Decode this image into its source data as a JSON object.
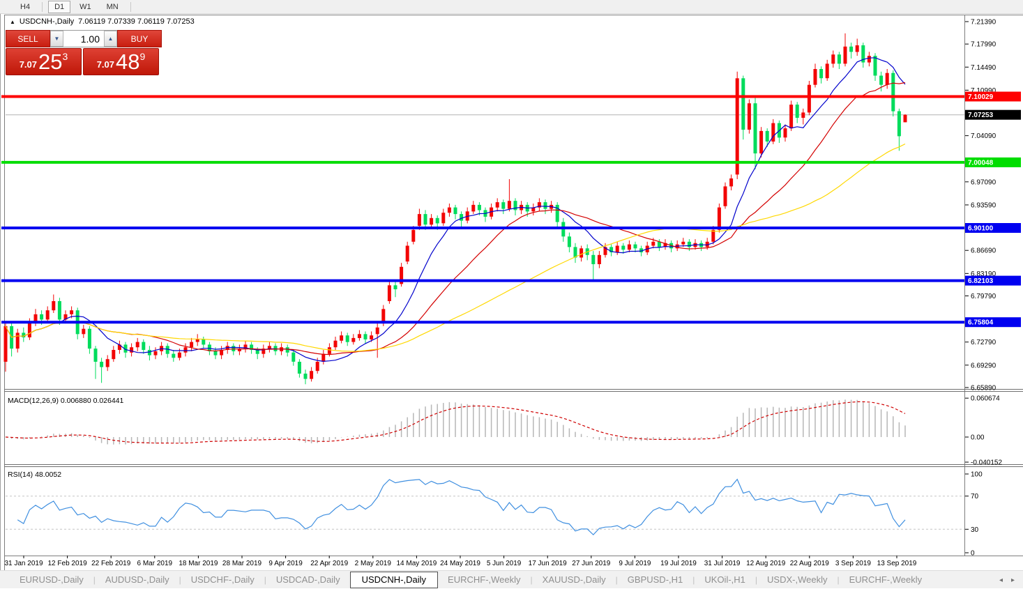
{
  "toolbar": {
    "timeframes": [
      {
        "label": "H4",
        "active": false
      },
      {
        "label": "D1",
        "active": true
      },
      {
        "label": "W1",
        "active": false
      },
      {
        "label": "MN",
        "active": false
      }
    ]
  },
  "chart_header": {
    "arrow": "▲",
    "title": "USDCNH-,Daily",
    "ohlc": "7.06119 7.07339 7.06119 7.07253"
  },
  "trade_panel": {
    "sell_label": "SELL",
    "buy_label": "BUY",
    "volume": "1.00",
    "spin_down_icon": "▼",
    "spin_up_icon": "▲",
    "sell_price": {
      "small": "7.07",
      "big": "25",
      "sup": "3"
    },
    "buy_price": {
      "small": "7.07",
      "big": "48",
      "sup": "9"
    }
  },
  "price_axis": {
    "ticks": [
      {
        "label": "7.21390",
        "price": 7.2139
      },
      {
        "label": "7.17990",
        "price": 7.1799
      },
      {
        "label": "7.14490",
        "price": 7.1449
      },
      {
        "label": "7.10990",
        "price": 7.1099
      },
      {
        "label": "7.04090",
        "price": 7.0409
      },
      {
        "label": "6.97090",
        "price": 6.9709
      },
      {
        "label": "6.93590",
        "price": 6.9359
      },
      {
        "label": "6.86690",
        "price": 6.8669
      },
      {
        "label": "6.83190",
        "price": 6.8319
      },
      {
        "label": "6.79790",
        "price": 6.7979
      },
      {
        "label": "6.72790",
        "price": 6.7279
      },
      {
        "label": "6.69290",
        "price": 6.6929
      },
      {
        "label": "6.65890",
        "price": 6.6589
      }
    ]
  },
  "levels": [
    {
      "label": "7.10029",
      "price": 7.10029,
      "color": "#fe0000"
    },
    {
      "label": "7.00048",
      "price": 7.00048,
      "color": "#00dd00"
    },
    {
      "label": "6.90100",
      "price": 6.901,
      "color": "#0000f0"
    },
    {
      "label": "6.82103",
      "price": 6.82103,
      "color": "#0000f0"
    },
    {
      "label": "6.75804",
      "price": 6.75804,
      "color": "#0000f0"
    }
  ],
  "current_price": {
    "label": "7.07253",
    "price": 7.07253
  },
  "macd_panel": {
    "label": "MACD(12,26,9) 0.006880 0.026441",
    "values": {
      "macd": 0.00688,
      "signal": 0.026441
    },
    "ticks": [
      {
        "label": "0.060674",
        "value": 0.060674
      },
      {
        "label": "0.00",
        "value": 0
      },
      {
        "label": "-0.040152",
        "value": -0.040152
      }
    ]
  },
  "rsi_panel": {
    "label": "RSI(14) 48.0052",
    "current": 48.0052,
    "levels": [
      70,
      30
    ],
    "ticks": [
      {
        "label": "100",
        "value": 100
      },
      {
        "label": "70",
        "value": 70
      },
      {
        "label": "30",
        "value": 30
      },
      {
        "label": "0",
        "value": 0
      }
    ]
  },
  "chart_data": {
    "type": "candlestick",
    "symbol": "USDCNH-",
    "timeframe": "Daily",
    "title": "USDCNH-,Daily",
    "current_ohlc": {
      "open": 7.06119,
      "high": 7.07339,
      "low": 7.06119,
      "close": 7.07253
    },
    "ylim": [
      6.6589,
      7.2139
    ],
    "grid": false,
    "color_convention": "red=bullish, green=bearish",
    "colors": {
      "bull": "#f20505",
      "bear": "#00dc5c",
      "hist": "#b6b6b6",
      "signal": "#cf0000",
      "rsi": "#3f8fe0",
      "current_line": "#b2b2b2"
    },
    "moving_averages": [
      {
        "period": 9,
        "color": "#0000cc"
      },
      {
        "period": 21,
        "color": "#d40000"
      },
      {
        "period": 45,
        "color": "#ffd800"
      }
    ],
    "macd_params": {
      "fast": 12,
      "slow": 26,
      "signal": 9
    },
    "rsi_period": 14,
    "date_labels": [
      "31 Jan 2019",
      "12 Feb 2019",
      "22 Feb 2019",
      "6 Mar 2019",
      "18 Mar 2019",
      "28 Mar 2019",
      "9 Apr 2019",
      "22 Apr 2019",
      "2 May 2019",
      "14 May 2019",
      "24 May 2019",
      "5 Jun 2019",
      "17 Jun 2019",
      "27 Jun 2019",
      "9 Jul 2019",
      "19 Jul 2019",
      "31 Jul 2019",
      "12 Aug 2019",
      "22 Aug 2019",
      "3 Sep 2019",
      "13 Sep 2019"
    ],
    "bars": [
      [
        6.698,
        6.758,
        6.683,
        6.752
      ],
      [
        6.752,
        6.757,
        6.706,
        6.718
      ],
      [
        6.718,
        6.748,
        6.712,
        6.742
      ],
      [
        6.742,
        6.75,
        6.728,
        6.735
      ],
      [
        6.735,
        6.764,
        6.731,
        6.758
      ],
      [
        6.758,
        6.778,
        6.752,
        6.77
      ],
      [
        6.77,
        6.776,
        6.754,
        6.762
      ],
      [
        6.762,
        6.782,
        6.758,
        6.776
      ],
      [
        6.776,
        6.8,
        6.772,
        6.79
      ],
      [
        6.79,
        6.795,
        6.754,
        6.762
      ],
      [
        6.762,
        6.776,
        6.756,
        6.77
      ],
      [
        6.77,
        6.782,
        6.764,
        6.776
      ],
      [
        6.776,
        6.78,
        6.732,
        6.74
      ],
      [
        6.74,
        6.754,
        6.734,
        6.748
      ],
      [
        6.748,
        6.752,
        6.71,
        6.718
      ],
      [
        6.718,
        6.722,
        6.672,
        6.698
      ],
      [
        6.698,
        6.704,
        6.666,
        6.69
      ],
      [
        6.69,
        6.708,
        6.684,
        6.702
      ],
      [
        6.702,
        6.722,
        6.698,
        6.716
      ],
      [
        6.716,
        6.73,
        6.71,
        6.724
      ],
      [
        6.724,
        6.728,
        6.704,
        6.712
      ],
      [
        6.712,
        6.726,
        6.706,
        6.72
      ],
      [
        6.72,
        6.734,
        6.714,
        6.728
      ],
      [
        6.728,
        6.732,
        6.71,
        6.716
      ],
      [
        6.716,
        6.722,
        6.7,
        6.708
      ],
      [
        6.708,
        6.72,
        6.702,
        6.714
      ],
      [
        6.714,
        6.728,
        6.708,
        6.722
      ],
      [
        6.722,
        6.726,
        6.704,
        6.71
      ],
      [
        6.71,
        6.716,
        6.698,
        6.704
      ],
      [
        6.704,
        6.718,
        6.7,
        6.712
      ],
      [
        6.712,
        6.726,
        6.706,
        6.72
      ],
      [
        6.72,
        6.734,
        6.714,
        6.728
      ],
      [
        6.728,
        6.74,
        6.722,
        6.732
      ],
      [
        6.732,
        6.736,
        6.718,
        6.724
      ],
      [
        6.724,
        6.728,
        6.708,
        6.714
      ],
      [
        6.714,
        6.72,
        6.702,
        6.708
      ],
      [
        6.708,
        6.722,
        6.702,
        6.716
      ],
      [
        6.716,
        6.728,
        6.71,
        6.722
      ],
      [
        6.722,
        6.726,
        6.708,
        6.714
      ],
      [
        6.714,
        6.724,
        6.708,
        6.718
      ],
      [
        6.718,
        6.73,
        6.712,
        6.724
      ],
      [
        6.724,
        6.728,
        6.71,
        6.716
      ],
      [
        6.716,
        6.72,
        6.702,
        6.71
      ],
      [
        6.71,
        6.724,
        6.704,
        6.718
      ],
      [
        6.718,
        6.728,
        6.712,
        6.722
      ],
      [
        6.722,
        6.726,
        6.708,
        6.714
      ],
      [
        6.714,
        6.726,
        6.708,
        6.72
      ],
      [
        6.72,
        6.724,
        6.706,
        6.712
      ],
      [
        6.712,
        6.716,
        6.692,
        6.698
      ],
      [
        6.698,
        6.702,
        6.674,
        6.68
      ],
      [
        6.68,
        6.686,
        6.664,
        6.672
      ],
      [
        6.672,
        6.69,
        6.668,
        6.684
      ],
      [
        6.684,
        6.704,
        6.68,
        6.698
      ],
      [
        6.698,
        6.716,
        6.694,
        6.71
      ],
      [
        6.71,
        6.726,
        6.706,
        6.72
      ],
      [
        6.72,
        6.736,
        6.716,
        6.73
      ],
      [
        6.73,
        6.744,
        6.726,
        6.738
      ],
      [
        6.738,
        6.742,
        6.722,
        6.728
      ],
      [
        6.728,
        6.74,
        6.724,
        6.734
      ],
      [
        6.734,
        6.746,
        6.73,
        6.74
      ],
      [
        6.74,
        6.744,
        6.726,
        6.732
      ],
      [
        6.732,
        6.744,
        6.728,
        6.738
      ],
      [
        6.74,
        6.756,
        6.704,
        6.75
      ],
      [
        6.756,
        6.784,
        6.752,
        6.778
      ],
      [
        6.79,
        6.82,
        6.786,
        6.814
      ],
      [
        6.814,
        6.822,
        6.796,
        6.808
      ],
      [
        6.816,
        6.848,
        6.812,
        6.842
      ],
      [
        6.85,
        6.88,
        6.846,
        6.874
      ],
      [
        6.88,
        6.904,
        6.876,
        6.898
      ],
      [
        6.904,
        6.93,
        6.898,
        6.922
      ],
      [
        6.922,
        6.928,
        6.898,
        6.906
      ],
      [
        6.906,
        6.922,
        6.9,
        6.916
      ],
      [
        6.916,
        6.92,
        6.898,
        6.908
      ],
      [
        6.908,
        6.93,
        6.904,
        6.924
      ],
      [
        6.924,
        6.938,
        6.918,
        6.932
      ],
      [
        6.932,
        6.936,
        6.914,
        6.922
      ],
      [
        6.922,
        6.926,
        6.902,
        6.912
      ],
      [
        6.912,
        6.932,
        6.908,
        6.926
      ],
      [
        6.926,
        6.942,
        6.922,
        6.936
      ],
      [
        6.936,
        6.94,
        6.92,
        6.928
      ],
      [
        6.928,
        6.932,
        6.91,
        6.918
      ],
      [
        6.918,
        6.938,
        6.914,
        6.932
      ],
      [
        6.932,
        6.946,
        6.926,
        6.94
      ],
      [
        6.94,
        6.944,
        6.922,
        6.93
      ],
      [
        6.93,
        6.975,
        6.926,
        6.942
      ],
      [
        6.942,
        6.946,
        6.92,
        6.928
      ],
      [
        6.928,
        6.942,
        6.922,
        6.936
      ],
      [
        6.936,
        6.94,
        6.918,
        6.926
      ],
      [
        6.926,
        6.938,
        6.92,
        6.932
      ],
      [
        6.932,
        6.946,
        6.926,
        6.94
      ],
      [
        6.94,
        6.944,
        6.922,
        6.93
      ],
      [
        6.93,
        6.942,
        6.924,
        6.936
      ],
      [
        6.936,
        6.94,
        6.902,
        6.91
      ],
      [
        6.91,
        6.916,
        6.88,
        6.888
      ],
      [
        6.888,
        6.894,
        6.864,
        6.872
      ],
      [
        6.872,
        6.878,
        6.848,
        6.856
      ],
      [
        6.856,
        6.874,
        6.85,
        6.87
      ],
      [
        6.87,
        6.876,
        6.852,
        6.86
      ],
      [
        6.86,
        6.866,
        6.82,
        6.846
      ],
      [
        6.846,
        6.866,
        6.84,
        6.86
      ],
      [
        6.86,
        6.878,
        6.856,
        6.872
      ],
      [
        6.872,
        6.876,
        6.858,
        6.864
      ],
      [
        6.864,
        6.88,
        6.86,
        6.874
      ],
      [
        6.874,
        6.878,
        6.862,
        6.868
      ],
      [
        6.868,
        6.882,
        6.864,
        6.876
      ],
      [
        6.876,
        6.88,
        6.864,
        6.87
      ],
      [
        6.87,
        6.874,
        6.858,
        6.864
      ],
      [
        6.864,
        6.88,
        6.86,
        6.874
      ],
      [
        6.874,
        6.886,
        6.87,
        6.88
      ],
      [
        6.88,
        6.884,
        6.866,
        6.872
      ],
      [
        6.872,
        6.884,
        6.868,
        6.878
      ],
      [
        6.878,
        6.882,
        6.864,
        6.87
      ],
      [
        6.87,
        6.882,
        6.866,
        6.876
      ],
      [
        6.876,
        6.886,
        6.872,
        6.88
      ],
      [
        6.88,
        6.884,
        6.866,
        6.872
      ],
      [
        6.872,
        6.884,
        6.868,
        6.878
      ],
      [
        6.878,
        6.882,
        6.866,
        6.872
      ],
      [
        6.872,
        6.886,
        6.868,
        6.88
      ],
      [
        6.88,
        6.904,
        6.876,
        6.898
      ],
      [
        6.898,
        6.938,
        6.894,
        6.932
      ],
      [
        6.934,
        6.97,
        6.93,
        6.964
      ],
      [
        6.964,
        6.982,
        6.958,
        6.976
      ],
      [
        6.982,
        7.138,
        6.975,
        7.128
      ],
      [
        7.128,
        7.132,
        7.035,
        7.05
      ],
      [
        7.05,
        7.096,
        7.044,
        7.09
      ],
      [
        7.09,
        7.099,
        6.99,
        7.014
      ],
      [
        7.014,
        7.054,
        7.008,
        7.048
      ],
      [
        7.048,
        7.052,
        7.024,
        7.032
      ],
      [
        7.032,
        7.066,
        7.028,
        7.06
      ],
      [
        7.06,
        7.064,
        7.03,
        7.038
      ],
      [
        7.038,
        7.058,
        7.032,
        7.052
      ],
      [
        7.052,
        7.094,
        7.048,
        7.088
      ],
      [
        7.088,
        7.092,
        7.06,
        7.068
      ],
      [
        7.068,
        7.082,
        7.058,
        7.076
      ],
      [
        7.076,
        7.124,
        7.072,
        7.118
      ],
      [
        7.118,
        7.15,
        7.114,
        7.142
      ],
      [
        7.142,
        7.146,
        7.12,
        7.128
      ],
      [
        7.128,
        7.156,
        7.124,
        7.15
      ],
      [
        7.15,
        7.17,
        7.144,
        7.164
      ],
      [
        7.164,
        7.168,
        7.142,
        7.15
      ],
      [
        7.15,
        7.196,
        7.146,
        7.176
      ],
      [
        7.176,
        7.182,
        7.158,
        7.168
      ],
      [
        7.168,
        7.188,
        7.162,
        7.178
      ],
      [
        7.178,
        7.182,
        7.144,
        7.152
      ],
      [
        7.152,
        7.168,
        7.146,
        7.162
      ],
      [
        7.162,
        7.166,
        7.124,
        7.132
      ],
      [
        7.132,
        7.138,
        7.108,
        7.118
      ],
      [
        7.118,
        7.142,
        7.112,
        7.136
      ],
      [
        7.136,
        7.14,
        7.07,
        7.078
      ],
      [
        7.078,
        7.082,
        7.018,
        7.04
      ],
      [
        7.06119,
        7.07339,
        7.06119,
        7.07253
      ]
    ]
  },
  "tabs": {
    "items": [
      {
        "label": "EURUSD-,Daily",
        "active": false
      },
      {
        "label": "AUDUSD-,Daily",
        "active": false
      },
      {
        "label": "USDCHF-,Daily",
        "active": false
      },
      {
        "label": "USDCAD-,Daily",
        "active": false
      },
      {
        "label": "USDCNH-,Daily",
        "active": true
      },
      {
        "label": "EURCHF-,Weekly",
        "active": false
      },
      {
        "label": "XAUUSD-,Daily",
        "active": false
      },
      {
        "label": "GBPUSD-,H1",
        "active": false
      },
      {
        "label": "UKOil-,H1",
        "active": false
      },
      {
        "label": "USDX-,Weekly",
        "active": false
      },
      {
        "label": "EURCHF-,Weekly",
        "active": false
      }
    ],
    "scroll_left": "◂",
    "scroll_right": "▸"
  }
}
